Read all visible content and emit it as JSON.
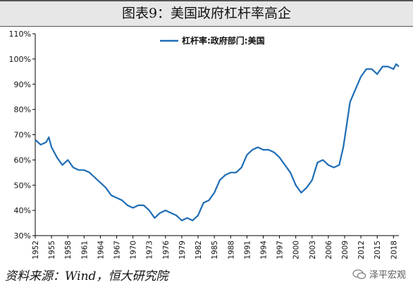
{
  "title": "图表9：美国政府杠杆率高企",
  "source": "资料来源：Wind，恒大研究院",
  "watermark": "泽平宏观",
  "watermark_icon": "wechat-icon",
  "series_color": "#1f6db5",
  "chart_data": {
    "type": "line",
    "legend": "top",
    "grid": false,
    "ylim": [
      30,
      110
    ],
    "yticks": [
      30,
      40,
      50,
      60,
      70,
      80,
      90,
      100,
      110
    ],
    "ytick_labels": [
      "30%",
      "40%",
      "50%",
      "60%",
      "70%",
      "80%",
      "90%",
      "100%",
      "110%"
    ],
    "xlim": [
      1952.0,
      2019.0
    ],
    "xtick_labels": [
      "1952",
      "1955",
      "1958",
      "1961",
      "1964",
      "1967",
      "1970",
      "1973",
      "1976",
      "1979",
      "1982",
      "1985",
      "1988",
      "1991",
      "1994",
      "1997",
      "2000",
      "2003",
      "2006",
      "2009",
      "2012",
      "2015",
      "2018"
    ],
    "xticks": [
      1952,
      1955,
      1958,
      1961,
      1964,
      1967,
      1970,
      1973,
      1976,
      1979,
      1982,
      1985,
      1988,
      1991,
      1994,
      1997,
      2000,
      2003,
      2006,
      2009,
      2012,
      2015,
      2018
    ],
    "series": [
      {
        "name": "杠杆率:政府部门:美国",
        "x": [
          1952.0,
          1953.0,
          1954.0,
          1954.5,
          1955.0,
          1955.5,
          1956.0,
          1957.0,
          1958.0,
          1959.0,
          1960.0,
          1961.0,
          1962.0,
          1963.0,
          1964.0,
          1965.0,
          1966.0,
          1967.0,
          1968.0,
          1969.0,
          1970.0,
          1971.0,
          1972.0,
          1973.0,
          1974.0,
          1975.0,
          1976.0,
          1977.0,
          1978.0,
          1979.0,
          1980.0,
          1981.0,
          1982.0,
          1983.0,
          1984.0,
          1985.0,
          1986.0,
          1987.0,
          1988.0,
          1989.0,
          1990.0,
          1991.0,
          1992.0,
          1993.0,
          1994.0,
          1995.0,
          1996.0,
          1997.0,
          1998.0,
          1999.0,
          2000.0,
          2001.0,
          2002.0,
          2003.0,
          2004.0,
          2005.0,
          2006.0,
          2007.0,
          2008.0,
          2008.75,
          2009.25,
          2010.0,
          2011.0,
          2012.0,
          2013.0,
          2014.0,
          2015.0,
          2016.0,
          2017.0,
          2018.0,
          2018.5,
          2019.0
        ],
        "y": [
          68,
          66,
          67,
          69,
          65,
          63,
          61,
          58,
          60,
          57,
          56,
          56,
          55,
          53,
          51,
          49,
          46,
          45,
          44,
          42,
          41,
          42,
          42,
          40,
          37,
          39,
          40,
          39,
          38,
          36,
          37,
          36,
          38,
          43,
          44,
          47,
          52,
          54,
          55,
          55,
          57,
          62,
          64,
          65,
          64,
          64,
          63,
          61,
          58,
          55,
          50,
          47,
          49,
          52,
          59,
          60,
          58,
          57,
          58,
          65,
          72,
          83,
          88,
          93,
          96,
          96,
          94,
          97,
          97,
          96,
          98,
          97
        ]
      }
    ]
  }
}
